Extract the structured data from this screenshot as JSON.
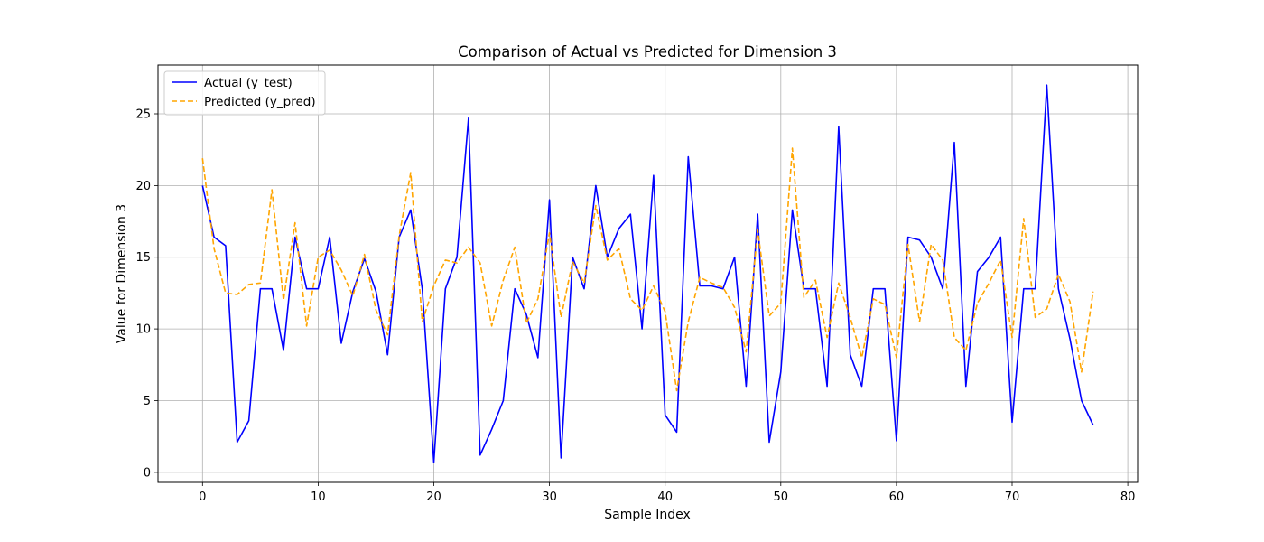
{
  "chart_data": {
    "type": "line",
    "title": "Comparison of Actual vs Predicted for Dimension 3",
    "xlabel": "Sample Index",
    "ylabel": "Value for Dimension 3",
    "xlim": [
      -3.85,
      80.85
    ],
    "ylim": [
      -0.7,
      28.4
    ],
    "xticks": [
      0,
      10,
      20,
      30,
      40,
      50,
      60,
      70,
      80
    ],
    "yticks": [
      0,
      5,
      10,
      15,
      20,
      25
    ],
    "grid": true,
    "legend_position": "top-left",
    "x": [
      0,
      1,
      2,
      3,
      4,
      5,
      6,
      7,
      8,
      9,
      10,
      11,
      12,
      13,
      14,
      15,
      16,
      17,
      18,
      19,
      20,
      21,
      22,
      23,
      24,
      25,
      26,
      27,
      28,
      29,
      30,
      31,
      32,
      33,
      34,
      35,
      36,
      37,
      38,
      39,
      40,
      41,
      42,
      43,
      44,
      45,
      46,
      47,
      48,
      49,
      50,
      51,
      52,
      53,
      54,
      55,
      56,
      57,
      58,
      59,
      60,
      61,
      62,
      63,
      64,
      65,
      66,
      67,
      68,
      69,
      70,
      71,
      72,
      73,
      74,
      75,
      76,
      77
    ],
    "series": [
      {
        "name": "Actual (y_test)",
        "color": "#0000ff",
        "style": "solid",
        "values": [
          20.0,
          16.4,
          15.8,
          2.1,
          3.6,
          12.8,
          12.8,
          8.5,
          16.4,
          12.8,
          12.8,
          16.4,
          9.0,
          12.6,
          14.9,
          12.6,
          8.2,
          16.4,
          18.3,
          12.8,
          0.7,
          12.8,
          15.0,
          24.7,
          1.2,
          3.0,
          5.0,
          12.8,
          11.0,
          8.0,
          19.0,
          1.0,
          15.0,
          12.8,
          20.0,
          15.0,
          17.0,
          18.0,
          10.0,
          20.7,
          4.0,
          2.8,
          22.0,
          13.0,
          13.0,
          12.8,
          15.0,
          6.0,
          18.0,
          2.1,
          7.0,
          18.3,
          12.8,
          12.8,
          6.0,
          24.1,
          8.2,
          6.0,
          12.8,
          12.8,
          2.2,
          16.4,
          16.2,
          15.0,
          12.8,
          23.0,
          6.0,
          14.0,
          15.0,
          16.4,
          3.5,
          12.8,
          12.8,
          27.0,
          12.8,
          9.3,
          5.0,
          3.3
        ]
      },
      {
        "name": "Predicted (y_pred)",
        "color": "#ffa500",
        "style": "dashed",
        "values": [
          21.9,
          15.6,
          12.5,
          12.4,
          13.1,
          13.2,
          19.7,
          12.0,
          17.4,
          10.2,
          15.0,
          15.5,
          14.1,
          12.3,
          15.2,
          11.3,
          9.6,
          16.5,
          20.9,
          10.5,
          13.0,
          14.8,
          14.6,
          15.7,
          14.6,
          10.2,
          13.4,
          15.7,
          10.4,
          12.1,
          16.7,
          10.8,
          14.7,
          13.2,
          18.6,
          14.8,
          15.6,
          12.1,
          11.3,
          13.0,
          11.2,
          5.7,
          10.5,
          13.6,
          13.2,
          12.9,
          11.5,
          8.4,
          16.9,
          10.9,
          11.8,
          22.6,
          12.2,
          13.4,
          9.4,
          13.2,
          10.8,
          8.0,
          12.1,
          11.7,
          8.0,
          15.9,
          10.5,
          15.9,
          14.8,
          9.4,
          8.5,
          11.8,
          13.2,
          14.8,
          9.4,
          17.7,
          10.8,
          11.4,
          13.8,
          11.9,
          7.0,
          12.6
        ]
      }
    ]
  }
}
